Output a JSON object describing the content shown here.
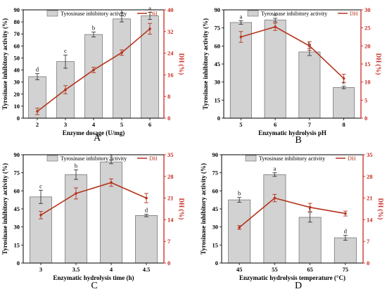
{
  "figure": {
    "colors": {
      "bar_fill": "#d2d2d2",
      "bar_stroke": "#777777",
      "line": "#b5341d",
      "axis_right": "#c8281e",
      "axis_left": "#000000"
    }
  },
  "chart_data": [
    {
      "type": "bar",
      "panel_label": "A",
      "xlabel": "Enzyme dosage (U/mg)",
      "ylabel_left": "Tyrosinase inhibitory activity  (%)",
      "ylabel_right": "DH  (%)",
      "categories": [
        "2",
        "3",
        "4",
        "5",
        "6"
      ],
      "ylim_left": [
        0,
        90
      ],
      "yticks_left": [
        0,
        10,
        20,
        30,
        40,
        50,
        60,
        70,
        80,
        90
      ],
      "ylim_right": [
        0,
        40
      ],
      "yticks_right": [
        0,
        8,
        16,
        24,
        32,
        40
      ],
      "legend_position": "top",
      "series": [
        {
          "name": "Tyrosinase inhibitory activity",
          "kind": "bar",
          "values": [
            34.5,
            47.0,
            69.5,
            82.5,
            85.0
          ],
          "errors": [
            2.5,
            5.5,
            2.0,
            2.5,
            3.0
          ],
          "letters": [
            "d",
            "c",
            "b",
            "a",
            "a"
          ]
        },
        {
          "name": "DH",
          "kind": "line",
          "values": [
            2.5,
            10.5,
            17.8,
            24.2,
            33.0
          ],
          "errors": [
            1.2,
            1.5,
            1.0,
            1.0,
            2.0
          ]
        }
      ]
    },
    {
      "type": "bar",
      "panel_label": "B",
      "xlabel": "Enzymatic hydrolysis pH",
      "ylabel_left": "Tyrosinase inhibitory activity  (%)",
      "ylabel_right": "DH  (%)",
      "categories": [
        "5",
        "6",
        "7",
        "8"
      ],
      "ylim_left": [
        0,
        90
      ],
      "yticks_left": [
        0,
        15,
        30,
        45,
        60,
        75,
        90
      ],
      "ylim_right": [
        0,
        30
      ],
      "yticks_right": [
        0,
        5,
        10,
        15,
        20,
        25,
        30
      ],
      "legend_position": "top",
      "series": [
        {
          "name": "Tyrosinase inhibitory activity",
          "kind": "bar",
          "values": [
            79.5,
            81.5,
            55.0,
            25.5
          ],
          "errors": [
            1.5,
            1.5,
            3.0,
            1.0
          ],
          "letters": [
            "a",
            "a",
            "b",
            "c"
          ]
        },
        {
          "name": "DH",
          "kind": "line",
          "values": [
            22.5,
            25.3,
            20.0,
            11.0
          ],
          "errors": [
            1.5,
            1.0,
            1.2,
            1.2
          ]
        }
      ]
    },
    {
      "type": "bar",
      "panel_label": "C",
      "xlabel": "Enzymatic hydrolysis time (h)",
      "ylabel_left": "Tyrosinase inhibitory activity  (%)",
      "ylabel_right": "DH  (%)",
      "categories": [
        "3",
        "3.5",
        "4",
        "4.5"
      ],
      "ylim_left": [
        0,
        90
      ],
      "yticks_left": [
        0,
        15,
        30,
        45,
        60,
        75,
        90
      ],
      "ylim_right": [
        0,
        35
      ],
      "yticks_right": [
        0,
        7,
        14,
        21,
        28,
        35
      ],
      "legend_position": "top",
      "series": [
        {
          "name": "Tyrosinase inhibitory activity",
          "kind": "bar",
          "values": [
            55.0,
            73.5,
            84.0,
            39.5
          ],
          "errors": [
            5.5,
            4.0,
            1.5,
            1.0
          ],
          "letters": [
            "c",
            "b",
            "a",
            "d"
          ]
        },
        {
          "name": "DH",
          "kind": "line",
          "values": [
            15.5,
            22.5,
            26.0,
            21.0
          ],
          "errors": [
            1.2,
            1.8,
            1.2,
            1.5
          ]
        }
      ]
    },
    {
      "type": "bar",
      "panel_label": "D",
      "xlabel": "Enzymatic hydrolysis temperature (°C)",
      "ylabel_left": "Tyrosinase inhibitory activity  (%)",
      "ylabel_right": "DH  (%)",
      "categories": [
        "45",
        "55",
        "65",
        "75"
      ],
      "ylim_left": [
        0,
        90
      ],
      "yticks_left": [
        0,
        15,
        30,
        45,
        60,
        75,
        90
      ],
      "ylim_right": [
        0,
        35
      ],
      "yticks_right": [
        0,
        7,
        14,
        21,
        28,
        35
      ],
      "legend_position": "top",
      "series": [
        {
          "name": "Tyrosinase inhibitory activity",
          "kind": "bar",
          "values": [
            52.5,
            73.5,
            38.0,
            21.0
          ],
          "errors": [
            2.0,
            1.5,
            4.0,
            2.0
          ],
          "letters": [
            "b",
            "a",
            "c",
            "d"
          ]
        },
        {
          "name": "DH",
          "kind": "line",
          "values": [
            11.5,
            21.0,
            18.0,
            16.0
          ],
          "errors": [
            0.6,
            1.2,
            1.3,
            0.8
          ]
        }
      ]
    }
  ]
}
